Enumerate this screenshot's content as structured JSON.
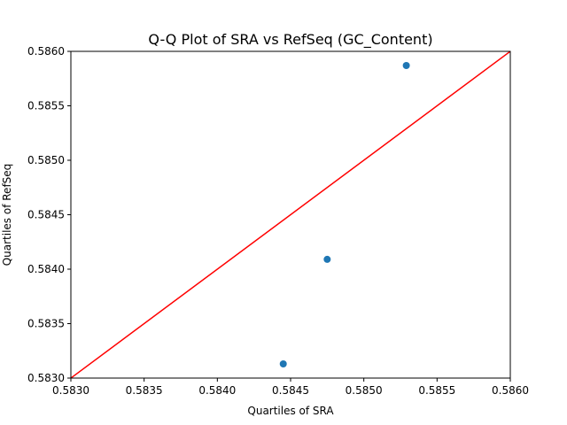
{
  "chart_data": {
    "type": "scatter",
    "title": "Q-Q Plot of SRA vs RefSeq (GC_Content)",
    "xlabel": "Quartiles of SRA",
    "ylabel": "Quartiles of RefSeq",
    "xlim": [
      0.583,
      0.586
    ],
    "ylim": [
      0.583,
      0.586
    ],
    "xticks": [
      "0.5830",
      "0.5835",
      "0.5840",
      "0.5845",
      "0.5850",
      "0.5855",
      "0.5860"
    ],
    "yticks": [
      "0.5830",
      "0.5835",
      "0.5840",
      "0.5845",
      "0.5850",
      "0.5855",
      "0.5860"
    ],
    "grid": false,
    "series": [
      {
        "type": "scatter",
        "color": "#1f77b4",
        "points": [
          {
            "x": 0.58445,
            "y": 0.58313
          },
          {
            "x": 0.58475,
            "y": 0.58409
          },
          {
            "x": 0.58529,
            "y": 0.58587
          }
        ]
      },
      {
        "type": "line",
        "color": "#ff0000",
        "points": [
          {
            "x": 0.583,
            "y": 0.583
          },
          {
            "x": 0.586,
            "y": 0.586
          }
        ]
      }
    ]
  }
}
